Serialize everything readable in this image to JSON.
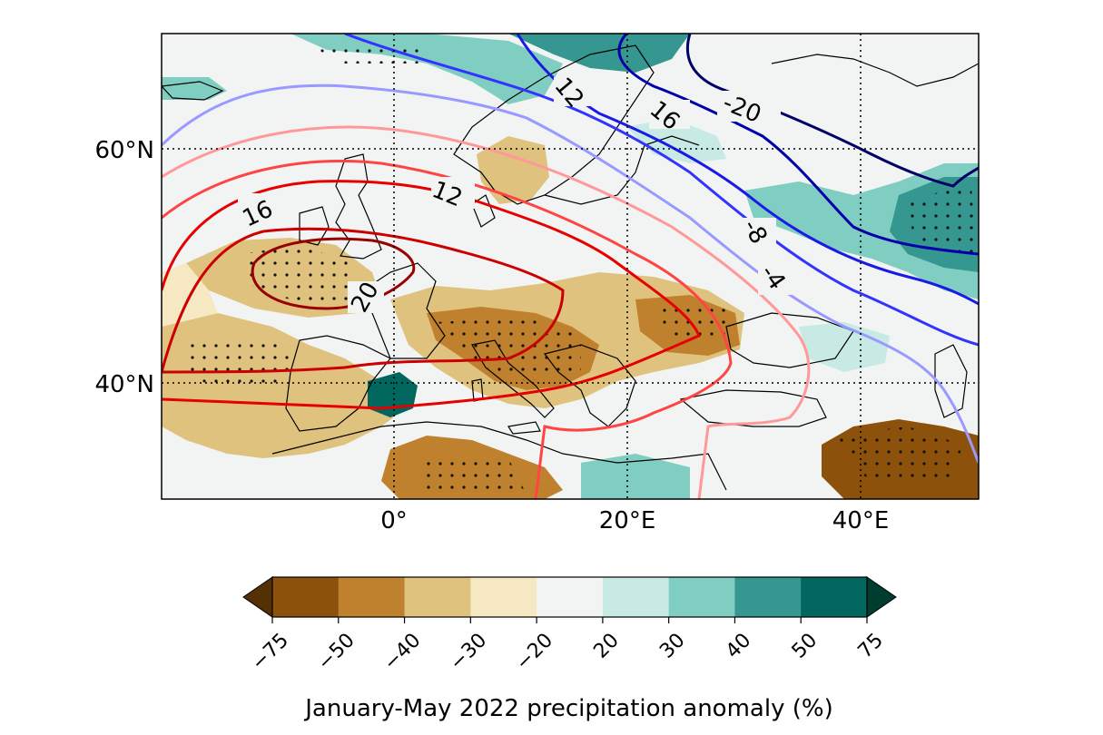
{
  "map": {
    "lat_ticks": [
      "60°N",
      "40°N"
    ],
    "lon_ticks": [
      "0°",
      "20°E",
      "40°E"
    ],
    "ocean_color": "#f2f4f4",
    "coast_color": "#000000",
    "grid_style": "dotted",
    "contour_labels": [
      "-20",
      "16",
      "12",
      "-8",
      "-4",
      "16",
      "12",
      "20"
    ]
  },
  "colorbar": {
    "label": "January-May 2022 precipitation anomaly (%)",
    "ticks": [
      "−75",
      "−50",
      "−40",
      "−30",
      "−20",
      "20",
      "30",
      "40",
      "50",
      "75"
    ],
    "colors": [
      "#8c510a",
      "#bf812d",
      "#dfc27d",
      "#f6e8c3",
      "#f2f4f4",
      "#c7eae5",
      "#80cdc1",
      "#35978f",
      "#01665e"
    ],
    "under_color": "#543005",
    "over_color": "#003c30"
  }
}
